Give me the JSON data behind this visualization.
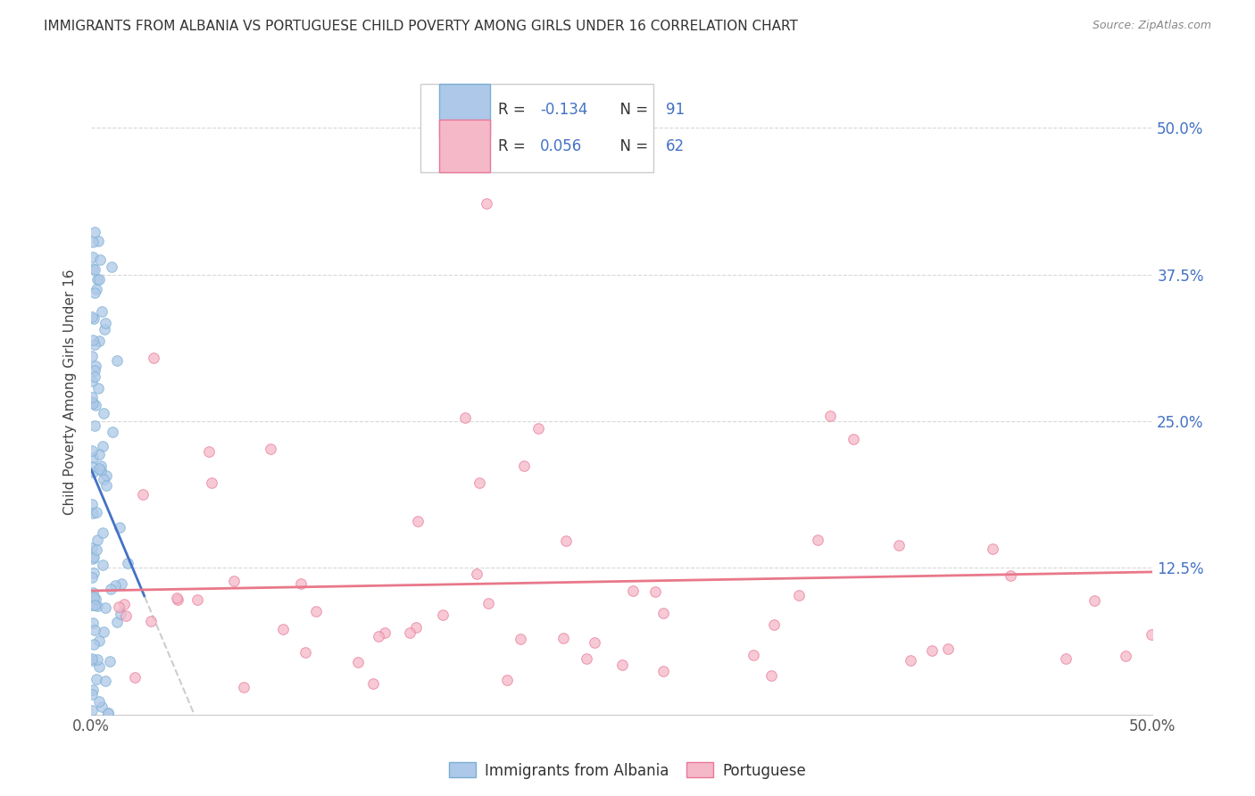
{
  "title": "IMMIGRANTS FROM ALBANIA VS PORTUGUESE CHILD POVERTY AMONG GIRLS UNDER 16 CORRELATION CHART",
  "source": "Source: ZipAtlas.com",
  "ylabel": "Child Poverty Among Girls Under 16",
  "xlim": [
    0.0,
    0.5
  ],
  "ylim": [
    0.0,
    0.55
  ],
  "xtick_positions": [
    0.0,
    0.125,
    0.25,
    0.375,
    0.5
  ],
  "xticklabels": [
    "0.0%",
    "",
    "",
    "",
    "50.0%"
  ],
  "ytick_positions": [
    0.0,
    0.125,
    0.25,
    0.375,
    0.5
  ],
  "yticklabels_right": [
    "",
    "12.5%",
    "25.0%",
    "37.5%",
    "50.0%"
  ],
  "legend_labels": [
    "Immigrants from Albania",
    "Portuguese"
  ],
  "albania_color": "#adc8e8",
  "portuguese_color": "#f5b8c8",
  "albania_edge": "#7aafd4",
  "portuguese_edge": "#e87898",
  "albania_line_color": "#4472c4",
  "portuguese_line_color": "#e8788a",
  "albania_dash_color": "#c8c8c8",
  "R_albania": -0.134,
  "N_albania": 91,
  "R_portuguese": 0.056,
  "N_portuguese": 62,
  "right_tick_color": "#4472c4",
  "title_color": "#333333",
  "source_color": "#888888",
  "grid_color": "#d8d8d8",
  "legend_R_color": "#4472c4",
  "legend_label_color": "#333333"
}
